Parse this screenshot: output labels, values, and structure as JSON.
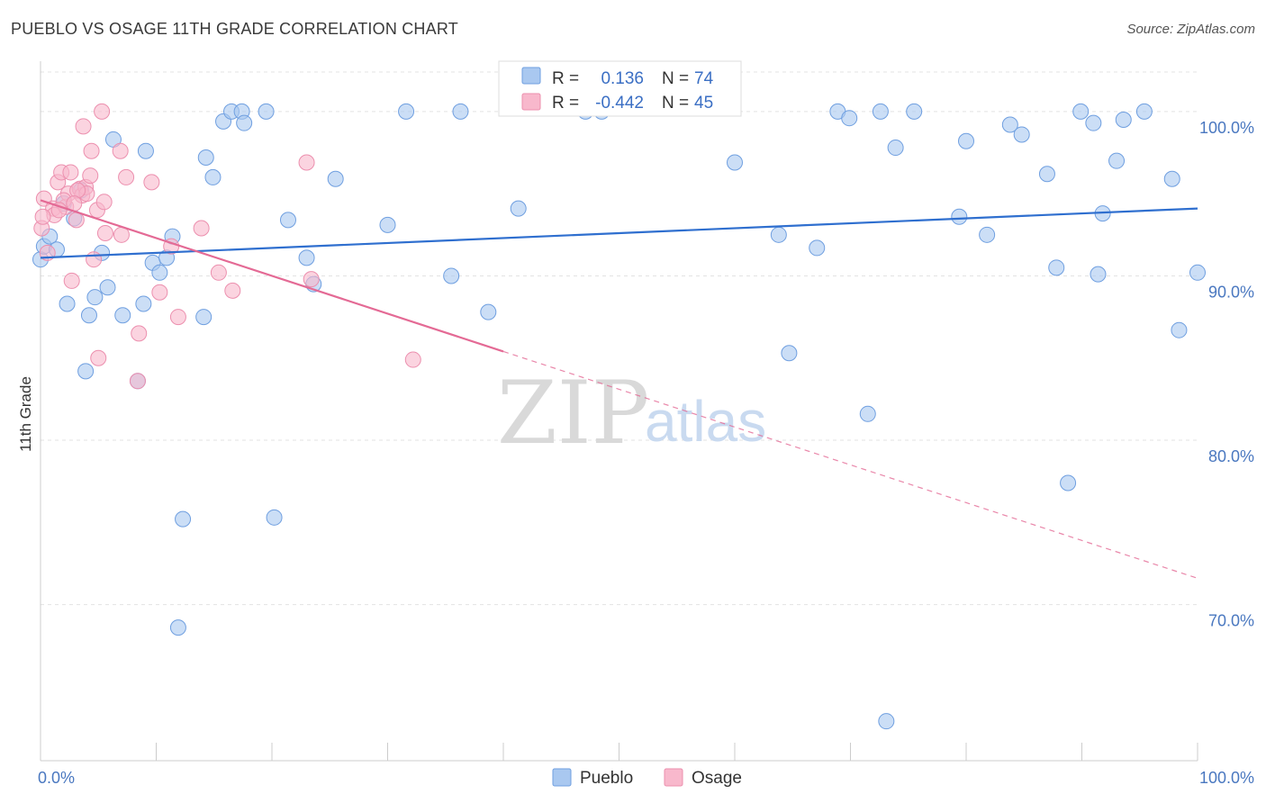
{
  "title": "PUEBLO VS OSAGE 11TH GRADE CORRELATION CHART",
  "source": "Source: ZipAtlas.com",
  "watermark": {
    "zip": "ZIP",
    "atlas": "atlas"
  },
  "colors": {
    "pueblo_fill": "#a9c8f0",
    "pueblo_stroke": "#6f9fe0",
    "pueblo_line": "#2f6fcf",
    "osage_fill": "#f8b8cc",
    "osage_stroke": "#ec8fae",
    "osage_line": "#e46a95",
    "tick_label": "#4a78c0",
    "grid": "#e3e3e3"
  },
  "legend": {
    "rows": [
      {
        "r_label": "R =",
        "r_value": "0.136",
        "n_label": "N =",
        "n_value": "74"
      },
      {
        "r_label": "R =",
        "r_value": "-0.442",
        "n_label": "N =",
        "n_value": "45"
      }
    ]
  },
  "chart_data": {
    "type": "scatter",
    "title": "PUEBLO VS OSAGE 11TH GRADE CORRELATION CHART",
    "xlabel": "",
    "ylabel": "11th Grade",
    "xlim": [
      0,
      100
    ],
    "ylim": [
      60.5,
      103.5
    ],
    "x_tick_labels": [
      "0.0%",
      "100.0%"
    ],
    "y_ticks": [
      {
        "value": 100,
        "label": "100.0%"
      },
      {
        "value": 90,
        "label": "90.0%"
      },
      {
        "value": 80,
        "label": "80.0%"
      },
      {
        "value": 70,
        "label": "70.0%"
      }
    ],
    "grid": true,
    "legend_position": "bottom",
    "series": [
      {
        "name": "Pueblo",
        "r": 0.136,
        "n": 74,
        "trend": {
          "x0": 0,
          "y0": 91.1,
          "x1": 100,
          "y1": 94.1,
          "dashed_from": null
        },
        "points": [
          [
            0.0,
            91.0
          ],
          [
            0.3,
            91.8
          ],
          [
            0.8,
            92.4
          ],
          [
            1.4,
            91.6
          ],
          [
            2.0,
            94.4
          ],
          [
            2.3,
            88.3
          ],
          [
            2.9,
            93.5
          ],
          [
            3.5,
            95.2
          ],
          [
            3.9,
            84.2
          ],
          [
            4.2,
            87.6
          ],
          [
            4.7,
            88.7
          ],
          [
            5.3,
            91.4
          ],
          [
            5.8,
            89.3
          ],
          [
            6.3,
            98.3
          ],
          [
            7.1,
            87.6
          ],
          [
            8.4,
            83.6
          ],
          [
            8.9,
            88.3
          ],
          [
            9.1,
            97.6
          ],
          [
            9.7,
            90.8
          ],
          [
            10.3,
            90.2
          ],
          [
            10.9,
            91.1
          ],
          [
            11.4,
            92.4
          ],
          [
            11.9,
            68.6
          ],
          [
            12.3,
            75.2
          ],
          [
            14.1,
            87.5
          ],
          [
            14.3,
            97.2
          ],
          [
            14.9,
            96.0
          ],
          [
            15.8,
            99.4
          ],
          [
            16.5,
            100.0
          ],
          [
            17.4,
            100.0
          ],
          [
            17.6,
            99.3
          ],
          [
            19.5,
            100.0
          ],
          [
            20.2,
            75.3
          ],
          [
            21.4,
            93.4
          ],
          [
            23.0,
            91.1
          ],
          [
            23.6,
            89.5
          ],
          [
            25.5,
            95.9
          ],
          [
            30.0,
            93.1
          ],
          [
            31.6,
            100.0
          ],
          [
            35.5,
            90.0
          ],
          [
            36.3,
            100.0
          ],
          [
            38.7,
            87.8
          ],
          [
            41.3,
            94.1
          ],
          [
            47.1,
            100.0
          ],
          [
            48.5,
            100.0
          ],
          [
            60.0,
            96.9
          ],
          [
            63.8,
            92.5
          ],
          [
            64.7,
            85.3
          ],
          [
            67.1,
            91.7
          ],
          [
            68.9,
            100.0
          ],
          [
            69.9,
            99.6
          ],
          [
            71.5,
            81.6
          ],
          [
            72.6,
            100.0
          ],
          [
            73.1,
            62.9
          ],
          [
            73.9,
            97.8
          ],
          [
            75.5,
            100.0
          ],
          [
            79.4,
            93.6
          ],
          [
            80.0,
            98.2
          ],
          [
            81.8,
            92.5
          ],
          [
            83.8,
            99.2
          ],
          [
            84.8,
            98.6
          ],
          [
            87.0,
            96.2
          ],
          [
            87.8,
            90.5
          ],
          [
            88.8,
            77.4
          ],
          [
            89.9,
            100.0
          ],
          [
            91.0,
            99.3
          ],
          [
            91.4,
            90.1
          ],
          [
            91.8,
            93.8
          ],
          [
            93.0,
            97.0
          ],
          [
            93.6,
            99.5
          ],
          [
            95.4,
            100.0
          ],
          [
            97.8,
            95.9
          ],
          [
            98.4,
            86.7
          ],
          [
            100.0,
            90.2
          ]
        ]
      },
      {
        "name": "Osage",
        "r": -0.442,
        "n": 45,
        "trend": {
          "x0": 0,
          "y0": 94.6,
          "x1": 100,
          "y1": 71.6,
          "dashed_from": 40
        },
        "points": [
          [
            0.1,
            92.9
          ],
          [
            0.3,
            94.7
          ],
          [
            0.6,
            91.4
          ],
          [
            1.1,
            94.1
          ],
          [
            1.2,
            93.7
          ],
          [
            1.5,
            95.7
          ],
          [
            1.8,
            96.3
          ],
          [
            2.2,
            94.2
          ],
          [
            2.4,
            95.0
          ],
          [
            2.6,
            96.3
          ],
          [
            2.7,
            89.7
          ],
          [
            3.1,
            93.4
          ],
          [
            3.4,
            95.3
          ],
          [
            3.6,
            94.9
          ],
          [
            3.7,
            99.1
          ],
          [
            3.9,
            95.4
          ],
          [
            4.0,
            95.0
          ],
          [
            4.3,
            96.1
          ],
          [
            4.4,
            97.6
          ],
          [
            4.6,
            91.0
          ],
          [
            4.9,
            94.0
          ],
          [
            5.0,
            85.0
          ],
          [
            5.3,
            100.0
          ],
          [
            5.5,
            94.5
          ],
          [
            5.6,
            92.6
          ],
          [
            6.9,
            97.6
          ],
          [
            7.0,
            92.5
          ],
          [
            7.4,
            96.0
          ],
          [
            8.4,
            83.6
          ],
          [
            8.5,
            86.5
          ],
          [
            9.6,
            95.7
          ],
          [
            10.3,
            89.0
          ],
          [
            11.3,
            91.8
          ],
          [
            11.9,
            87.5
          ],
          [
            13.9,
            92.9
          ],
          [
            15.4,
            90.2
          ],
          [
            16.6,
            89.1
          ],
          [
            23.0,
            96.9
          ],
          [
            23.4,
            89.8
          ],
          [
            32.2,
            84.9
          ],
          [
            0.2,
            93.6
          ],
          [
            2.0,
            94.6
          ],
          [
            3.2,
            95.2
          ],
          [
            1.6,
            94.0
          ],
          [
            2.9,
            94.4
          ]
        ]
      }
    ]
  },
  "bottom_legend": {
    "pueblo": "Pueblo",
    "osage": "Osage"
  }
}
